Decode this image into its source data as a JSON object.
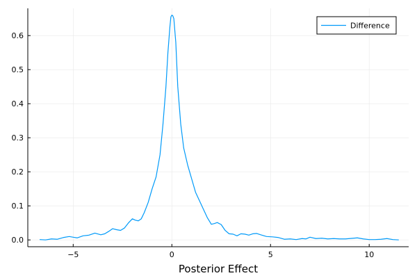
{
  "chart_data": {
    "type": "line",
    "title": "",
    "xlabel": "Posterior Effect",
    "ylabel": "",
    "xlim": [
      -7.3,
      12.0
    ],
    "ylim": [
      -0.02,
      0.68
    ],
    "grid": true,
    "legend_position": "top-right",
    "x_ticks": [
      -5,
      0,
      5,
      10
    ],
    "x_tick_labels": [
      "−5",
      "0",
      "5",
      "10"
    ],
    "y_ticks": [
      0.0,
      0.1,
      0.2,
      0.3,
      0.4,
      0.5,
      0.6
    ],
    "y_tick_labels": [
      "0.0",
      "0.1",
      "0.2",
      "0.3",
      "0.4",
      "0.5",
      "0.6"
    ],
    "colors": {
      "series": "#009af9",
      "grid": "#e8e8e8",
      "axis": "#000000"
    },
    "series": [
      {
        "name": "Difference",
        "x": [
          -6.7,
          -6.4,
          -6.1,
          -5.8,
          -5.5,
          -5.2,
          -5.0,
          -4.8,
          -4.5,
          -4.2,
          -3.9,
          -3.6,
          -3.4,
          -3.2,
          -3.0,
          -2.8,
          -2.6,
          -2.4,
          -2.2,
          -2.0,
          -1.85,
          -1.7,
          -1.55,
          -1.4,
          -1.2,
          -1.0,
          -0.8,
          -0.6,
          -0.45,
          -0.3,
          -0.2,
          -0.1,
          -0.05,
          0.0,
          0.05,
          0.1,
          0.2,
          0.3,
          0.45,
          0.6,
          0.8,
          1.0,
          1.2,
          1.4,
          1.6,
          1.8,
          2.0,
          2.15,
          2.3,
          2.5,
          2.7,
          2.9,
          3.1,
          3.3,
          3.5,
          3.7,
          3.9,
          4.1,
          4.3,
          4.5,
          4.8,
          5.1,
          5.4,
          5.7,
          6.0,
          6.3,
          6.6,
          6.8,
          7.0,
          7.3,
          7.6,
          7.9,
          8.2,
          8.5,
          8.8,
          9.0,
          9.2,
          9.4,
          9.7,
          10.0,
          10.3,
          10.6,
          10.9,
          11.2,
          11.5
        ],
        "values": [
          0.001,
          0.0,
          0.003,
          0.002,
          0.007,
          0.01,
          0.008,
          0.006,
          0.012,
          0.014,
          0.02,
          0.015,
          0.018,
          0.025,
          0.033,
          0.03,
          0.028,
          0.035,
          0.05,
          0.062,
          0.058,
          0.056,
          0.062,
          0.08,
          0.11,
          0.15,
          0.185,
          0.25,
          0.34,
          0.45,
          0.55,
          0.625,
          0.655,
          0.66,
          0.658,
          0.65,
          0.58,
          0.45,
          0.34,
          0.27,
          0.22,
          0.18,
          0.14,
          0.115,
          0.09,
          0.065,
          0.046,
          0.048,
          0.051,
          0.045,
          0.028,
          0.018,
          0.017,
          0.012,
          0.018,
          0.017,
          0.014,
          0.018,
          0.019,
          0.015,
          0.01,
          0.009,
          0.007,
          0.002,
          0.003,
          0.001,
          0.004,
          0.003,
          0.008,
          0.004,
          0.005,
          0.003,
          0.004,
          0.003,
          0.003,
          0.004,
          0.005,
          0.006,
          0.003,
          0.001,
          0.001,
          0.002,
          0.004,
          0.001,
          0.0
        ]
      }
    ]
  }
}
